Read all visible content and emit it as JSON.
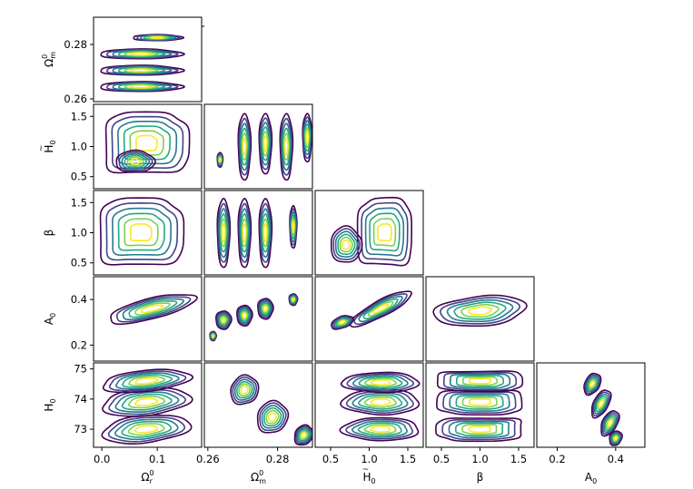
{
  "chart_data": {
    "type": "corner",
    "parameters": [
      {
        "key": "omega_r0",
        "label_base": "Ω",
        "label_sub": "r",
        "label_sup": "0",
        "label_accent": "",
        "range": [
          -0.015,
          0.18
        ],
        "ticks": [
          0.0,
          0.1
        ],
        "tick_labels": [
          "0.0",
          "0.1"
        ]
      },
      {
        "key": "omega_m0",
        "label_base": "Ω",
        "label_sub": "m",
        "label_sup": "0",
        "label_accent": "",
        "range": [
          0.259,
          0.29
        ],
        "ticks": [
          0.26,
          0.28
        ],
        "tick_labels": [
          "0.26",
          "0.28"
        ]
      },
      {
        "key": "h0_tilde",
        "label_base": "H",
        "label_sub": "0",
        "label_sup": "",
        "label_accent": "~",
        "range": [
          0.3,
          1.7
        ],
        "ticks": [
          0.5,
          1.0,
          1.5
        ],
        "tick_labels": [
          "0.5",
          "1.0",
          "1.5"
        ]
      },
      {
        "key": "beta",
        "label_base": "β",
        "label_sub": "",
        "label_sup": "",
        "label_accent": "",
        "range": [
          0.3,
          1.7
        ],
        "ticks": [
          0.5,
          1.0,
          1.5
        ],
        "tick_labels": [
          "0.5",
          "1.0",
          "1.5"
        ]
      },
      {
        "key": "a0",
        "label_base": "A",
        "label_sub": "0",
        "label_sup": "",
        "label_accent": "",
        "range": [
          0.13,
          0.5
        ],
        "ticks": [
          0.2,
          0.4
        ],
        "tick_labels": [
          "0.2",
          "0.4"
        ]
      },
      {
        "key": "h0",
        "label_base": "H",
        "label_sub": "0",
        "label_sup": "",
        "label_accent": "",
        "range": [
          72.4,
          75.2
        ],
        "ticks": [
          73,
          74,
          75
        ],
        "tick_labels": [
          "73",
          "74",
          "75"
        ]
      }
    ],
    "panels": [
      {
        "row": 1,
        "col": 0,
        "blobs": [
          {
            "cx": 0.07,
            "cy": 0.2645,
            "rx": 0.075,
            "ry": 0.0018
          },
          {
            "cx": 0.07,
            "cy": 0.2705,
            "rx": 0.075,
            "ry": 0.0018
          },
          {
            "cx": 0.07,
            "cy": 0.2765,
            "rx": 0.075,
            "ry": 0.0018
          },
          {
            "cx": 0.1,
            "cy": 0.2825,
            "rx": 0.045,
            "ry": 0.0011
          }
        ]
      },
      {
        "row": 2,
        "col": 0,
        "blobs": [
          {
            "cx": 0.08,
            "cy": 1.05,
            "rx": 0.075,
            "ry": 0.5,
            "sq": true
          },
          {
            "cx": 0.06,
            "cy": 0.75,
            "rx": 0.035,
            "ry": 0.18
          }
        ]
      },
      {
        "row": 2,
        "col": 1,
        "blobs": [
          {
            "cx": 0.2705,
            "cy": 1.0,
            "rx": 0.0018,
            "ry": 0.55
          },
          {
            "cx": 0.2765,
            "cy": 1.05,
            "rx": 0.0018,
            "ry": 0.5
          },
          {
            "cx": 0.2825,
            "cy": 1.0,
            "rx": 0.0018,
            "ry": 0.55
          },
          {
            "cx": 0.2885,
            "cy": 1.15,
            "rx": 0.0013,
            "ry": 0.4
          },
          {
            "cx": 0.2635,
            "cy": 0.78,
            "rx": 0.0008,
            "ry": 0.12
          }
        ]
      },
      {
        "row": 3,
        "col": 0,
        "blobs": [
          {
            "cx": 0.07,
            "cy": 1.0,
            "rx": 0.075,
            "ry": 0.55,
            "sq": true
          }
        ]
      },
      {
        "row": 3,
        "col": 1,
        "blobs": [
          {
            "cx": 0.2645,
            "cy": 1.0,
            "rx": 0.0018,
            "ry": 0.57
          },
          {
            "cx": 0.2705,
            "cy": 1.0,
            "rx": 0.0018,
            "ry": 0.57
          },
          {
            "cx": 0.2765,
            "cy": 1.0,
            "rx": 0.0018,
            "ry": 0.57
          },
          {
            "cx": 0.2845,
            "cy": 1.1,
            "rx": 0.001,
            "ry": 0.35
          }
        ]
      },
      {
        "row": 3,
        "col": 2,
        "blobs": [
          {
            "cx": 1.2,
            "cy": 1.0,
            "rx": 0.35,
            "ry": 0.55,
            "sq": true
          },
          {
            "cx": 0.7,
            "cy": 0.8,
            "rx": 0.2,
            "ry": 0.3
          }
        ]
      },
      {
        "row": 4,
        "col": 0,
        "blobs": [
          {
            "cx": 0.09,
            "cy": 0.36,
            "rx": 0.08,
            "ry": 0.045,
            "rot": -14
          }
        ]
      },
      {
        "row": 4,
        "col": 1,
        "blobs": [
          {
            "cx": 0.2645,
            "cy": 0.31,
            "rx": 0.0022,
            "ry": 0.04
          },
          {
            "cx": 0.2705,
            "cy": 0.33,
            "rx": 0.0022,
            "ry": 0.045
          },
          {
            "cx": 0.2765,
            "cy": 0.36,
            "rx": 0.0022,
            "ry": 0.045
          },
          {
            "cx": 0.2845,
            "cy": 0.4,
            "rx": 0.0012,
            "ry": 0.025
          },
          {
            "cx": 0.2615,
            "cy": 0.24,
            "rx": 0.0009,
            "ry": 0.02
          }
        ]
      },
      {
        "row": 4,
        "col": 2,
        "blobs": [
          {
            "cx": 1.15,
            "cy": 0.36,
            "rx": 0.45,
            "ry": 0.035,
            "rot": -28
          },
          {
            "cx": 0.65,
            "cy": 0.3,
            "rx": 0.15,
            "ry": 0.025,
            "rot": -20
          }
        ]
      },
      {
        "row": 4,
        "col": 3,
        "blobs": [
          {
            "cx": 1.0,
            "cy": 0.35,
            "rx": 0.6,
            "ry": 0.065,
            "rot": -5
          }
        ]
      },
      {
        "row": 5,
        "col": 0,
        "blobs": [
          {
            "cx": 0.08,
            "cy": 73.0,
            "rx": 0.08,
            "ry": 0.45,
            "rot": -6
          },
          {
            "cx": 0.08,
            "cy": 73.9,
            "rx": 0.08,
            "ry": 0.45,
            "rot": -6
          },
          {
            "cx": 0.08,
            "cy": 74.6,
            "rx": 0.08,
            "ry": 0.35,
            "rot": -6
          }
        ]
      },
      {
        "row": 5,
        "col": 1,
        "blobs": [
          {
            "cx": 0.2705,
            "cy": 74.3,
            "rx": 0.0038,
            "ry": 0.5,
            "rot": 35
          },
          {
            "cx": 0.2785,
            "cy": 73.4,
            "rx": 0.0042,
            "ry": 0.55,
            "rot": 35
          },
          {
            "cx": 0.2875,
            "cy": 72.8,
            "rx": 0.0025,
            "ry": 0.35,
            "rot": 35
          }
        ]
      },
      {
        "row": 5,
        "col": 2,
        "blobs": [
          {
            "cx": 1.15,
            "cy": 73.0,
            "rx": 0.5,
            "ry": 0.38
          },
          {
            "cx": 1.15,
            "cy": 73.9,
            "rx": 0.5,
            "ry": 0.42
          },
          {
            "cx": 1.15,
            "cy": 74.55,
            "rx": 0.5,
            "ry": 0.33
          }
        ]
      },
      {
        "row": 5,
        "col": 3,
        "blobs": [
          {
            "cx": 1.0,
            "cy": 73.0,
            "rx": 0.55,
            "ry": 0.38,
            "sq": true
          },
          {
            "cx": 1.0,
            "cy": 73.9,
            "rx": 0.55,
            "ry": 0.4,
            "sq": true
          },
          {
            "cx": 1.0,
            "cy": 74.6,
            "rx": 0.55,
            "ry": 0.33,
            "sq": true
          }
        ]
      },
      {
        "row": 5,
        "col": 4,
        "blobs": [
          {
            "cx": 0.32,
            "cy": 74.5,
            "rx": 0.025,
            "ry": 0.38,
            "rot": 28
          },
          {
            "cx": 0.35,
            "cy": 73.85,
            "rx": 0.025,
            "ry": 0.5,
            "rot": 28
          },
          {
            "cx": 0.38,
            "cy": 73.2,
            "rx": 0.025,
            "ry": 0.45,
            "rot": 28
          },
          {
            "cx": 0.4,
            "cy": 72.7,
            "rx": 0.02,
            "ry": 0.25,
            "rot": 28
          }
        ]
      }
    ],
    "contour_levels": 6,
    "colormap": "viridis",
    "colors": [
      "#440154",
      "#414487",
      "#2a788e",
      "#22a884",
      "#7ad151",
      "#fde725"
    ]
  }
}
